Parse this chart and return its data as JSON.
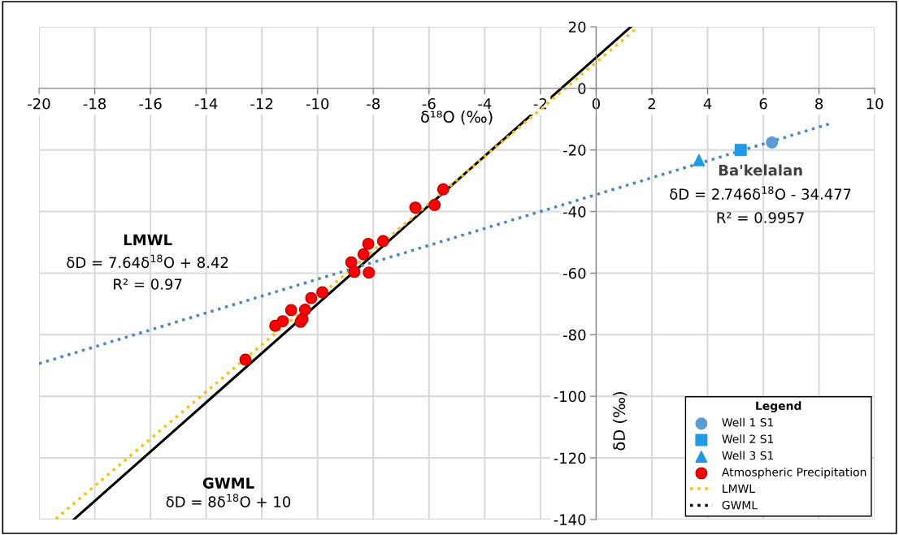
{
  "chart_data": {
    "type": "scatter",
    "xlabel": "δ¹⁸O (‰)",
    "ylabel": "δD (‰)",
    "xlim": [
      -20,
      10
    ],
    "ylim": [
      -140,
      20
    ],
    "xticks": [
      -20,
      -18,
      -16,
      -14,
      -12,
      -10,
      -8,
      -6,
      -4,
      -2,
      0,
      2,
      4,
      6,
      8,
      10
    ],
    "yticks": [
      -140,
      -120,
      -100,
      -80,
      -60,
      -40,
      -20,
      0,
      20
    ],
    "grid": true,
    "legend": "bottom right",
    "legend_title": "Legend",
    "series": [
      {
        "name": "Well 1 S1",
        "marker": "circle",
        "color": "#5b9bd5",
        "x": [
          6.31
        ],
        "values": [
          -17.6
        ]
      },
      {
        "name": "Well 2 S1",
        "marker": "square",
        "color": "#1e9be6",
        "x": [
          5.19
        ],
        "values": [
          -20.0
        ]
      },
      {
        "name": "Well 3 S1",
        "marker": "triangle",
        "color": "#1e9be6",
        "x": [
          3.69
        ],
        "values": [
          -23.3
        ]
      },
      {
        "name": "Atmospheric Precipitation",
        "marker": "circle",
        "color": "#ff0000",
        "x": [
          -12.59,
          -11.52,
          -11.25,
          -10.95,
          -10.61,
          -10.54,
          -10.45,
          -10.23,
          -9.83,
          -8.79,
          -8.68,
          -8.35,
          -8.18,
          -8.16,
          -7.65,
          -6.49,
          -5.8,
          -5.49
        ],
        "values": [
          -88.1,
          -77.1,
          -75.6,
          -72.0,
          -75.8,
          -74.9,
          -71.9,
          -68.1,
          -66.2,
          -56.5,
          -59.6,
          -53.9,
          -50.5,
          -59.8,
          -49.6,
          -38.7,
          -37.9,
          -32.8
        ]
      },
      {
        "name": "LMWL",
        "type": "line",
        "line_style": "dotted",
        "color": "#ffc000",
        "x": [
          -19.4,
          1.5
        ],
        "values": [
          -139.8,
          19.9
        ]
      },
      {
        "name": "GWML",
        "type": "line",
        "line_style": "solid",
        "color": "#000000",
        "x": [
          -18.75,
          1.25
        ],
        "values": [
          -140,
          20
        ]
      },
      {
        "type": "line",
        "line_style": "dotted",
        "color": "#4a86c5",
        "x": [
          -20,
          8.35
        ],
        "values": [
          -89.4,
          -11.6
        ]
      }
    ],
    "annotations": [
      "LMWL",
      "δD = 7.64δ$^{18}$O + 8.42",
      "R² = 0.97",
      "GWML",
      "δD = 8δ$^{18}$O + 10",
      "Ba'kelalan",
      "δD = 2.746δ$^{18}$O - 34.477",
      "R² = 0.9957"
    ]
  }
}
